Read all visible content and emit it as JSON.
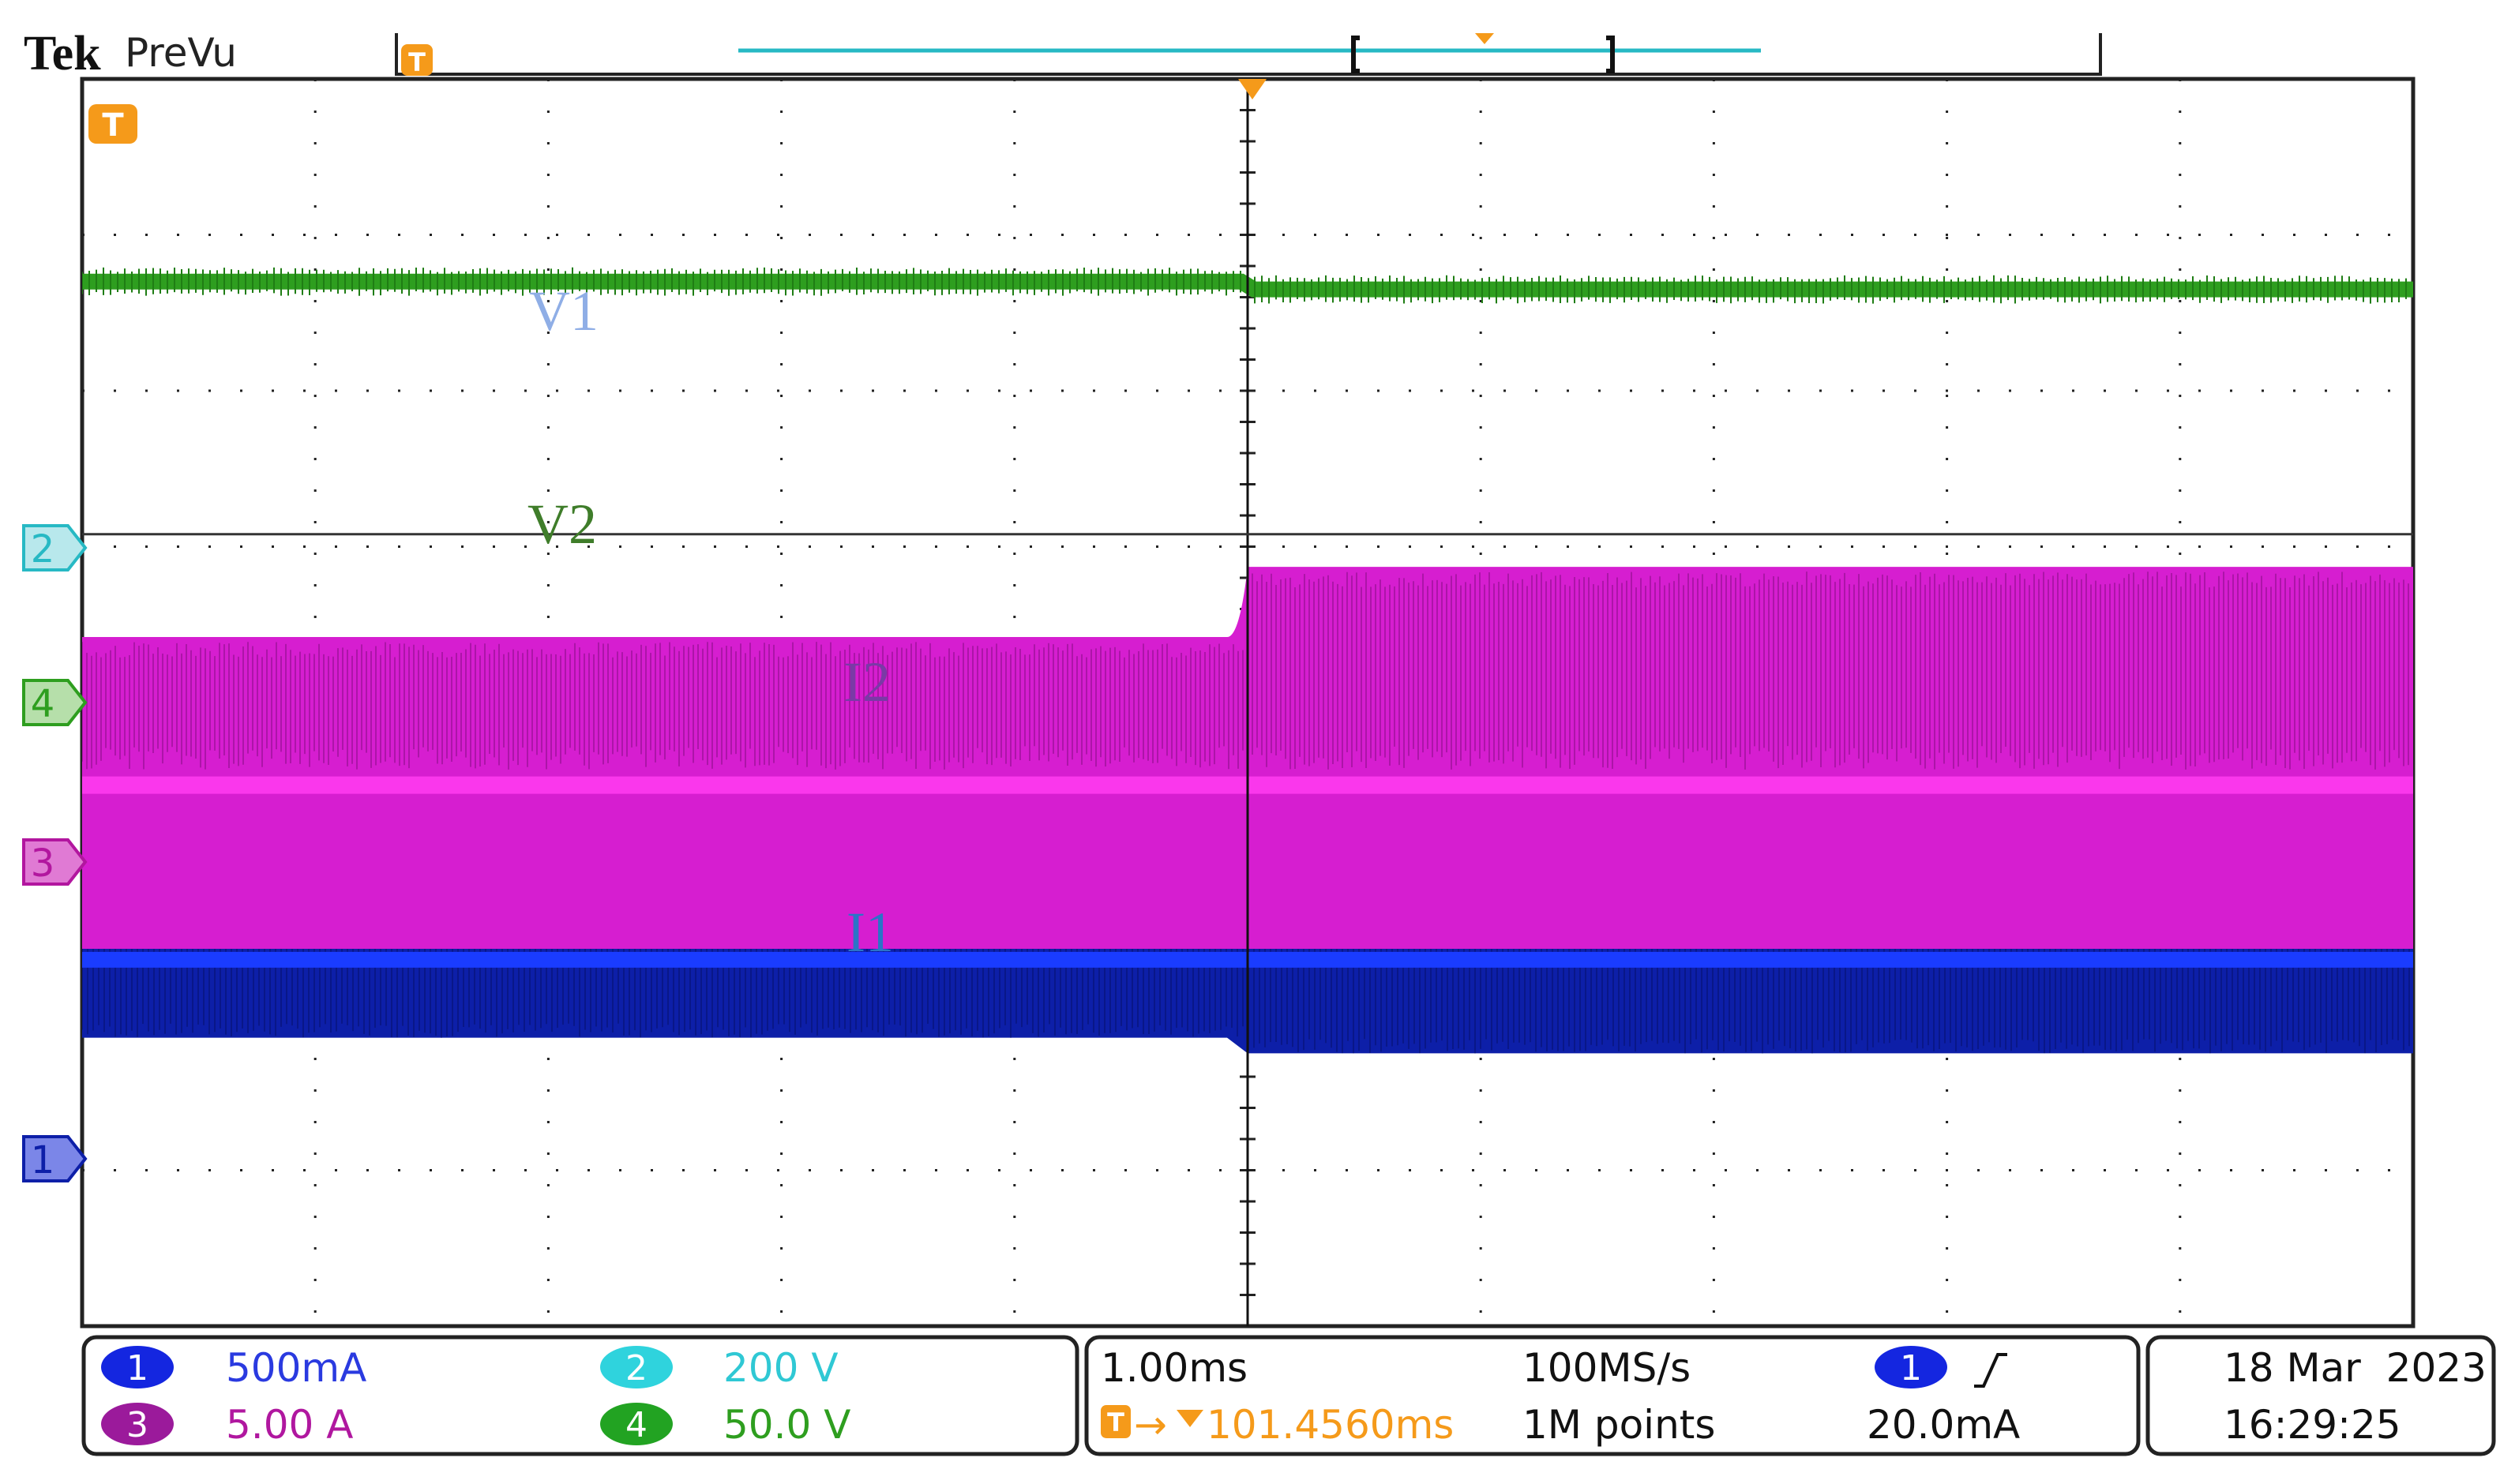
{
  "header": {
    "brand": "Tek",
    "mode": "PreVu",
    "trigger_marker": "T"
  },
  "trace_labels": {
    "v1": "V1",
    "v2": "V2",
    "i2": "I2",
    "i1": "I1"
  },
  "channel_markers": {
    "ch1": "1",
    "ch2": "2",
    "ch3": "3",
    "ch4": "4"
  },
  "colors": {
    "ch1": "#0d1fa8",
    "ch1_baseline": "#1a3cff",
    "ch2": "#27b9c4",
    "ch3": "#d61ed0",
    "ch3_dark": "#8a0f86",
    "ch4": "#2e9e1f",
    "grid": "#222222",
    "trigger": "#f59a1a",
    "label_v1": "#8faee6",
    "label_v2": "#3f7d2a",
    "label_i2": "#7a3aa6",
    "label_i1": "#2b74c7"
  },
  "status_bar": {
    "ch1": {
      "number": "1",
      "scale": "500mA"
    },
    "ch2": {
      "number": "2",
      "scale": "200 V"
    },
    "ch3": {
      "number": "3",
      "scale": "5.00 A"
    },
    "ch4": {
      "number": "4",
      "scale": "50.0 V"
    },
    "timebase": "1.00ms",
    "trigger_position": "101.4560ms",
    "sample_rate": "100MS/s",
    "record_length": "1M points",
    "trigger_source": "1",
    "trigger_slope_icon": "rising-edge-icon",
    "trigger_level": "20.0mA",
    "date": "18 Mar  2023",
    "time": "16:29:25"
  },
  "chart_data": {
    "type": "line",
    "title": "",
    "xlabel": "",
    "ylabel": "",
    "x_divisions": 10,
    "y_divisions": 8,
    "time_per_div": "1.00ms",
    "trigger_step_at_division": 5,
    "grid": true,
    "series": [
      {
        "name": "V1",
        "channel": 2,
        "scale": "200 V",
        "level_div": [
          2.5,
          2.5
        ]
      },
      {
        "name": "V2",
        "channel": 4,
        "scale": "50.0 V",
        "level_div": [
          1.5,
          1.45
        ]
      },
      {
        "name": "I2",
        "channel": 3,
        "scale": "5.00 A",
        "envelope_div": [
          [
            0.8,
            1.75
          ],
          [
            0.8,
            1.75
          ]
        ],
        "envelope_div_after": [
          [
            0.8,
            1.4
          ],
          [
            0.8,
            1.4
          ]
        ],
        "band_div": [
          [
            -1.05,
            0.95
          ],
          [
            -1.05,
            1.4
          ]
        ]
      },
      {
        "name": "I1",
        "channel": 1,
        "scale": "500mA",
        "band_div": [
          [
            -0.5,
            1.25
          ],
          [
            -0.6,
            1.85
          ]
        ]
      }
    ]
  }
}
